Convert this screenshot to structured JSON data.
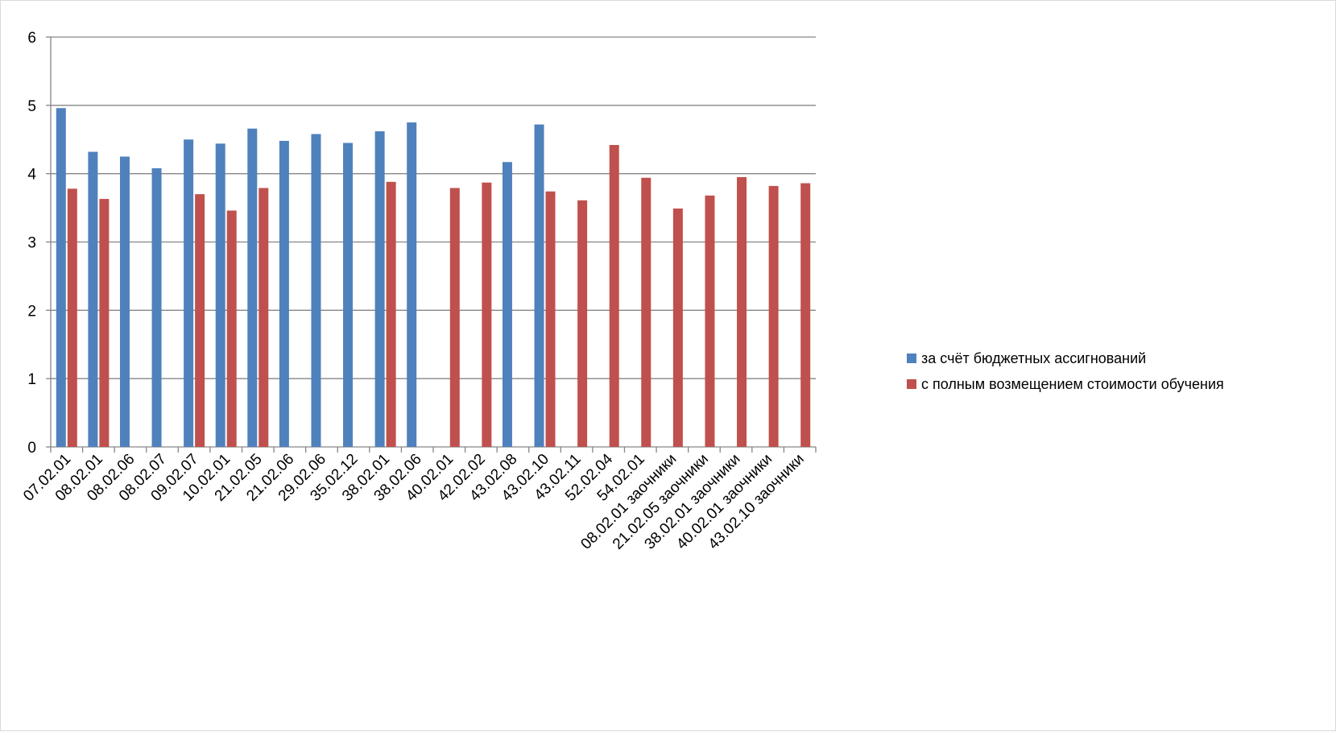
{
  "chart_data": {
    "type": "bar",
    "title": "",
    "xlabel": "",
    "ylabel": "",
    "ylim": [
      0,
      6
    ],
    "yticks": [
      "0",
      "1",
      "2",
      "3",
      "4",
      "5",
      "6"
    ],
    "grid": "horizontal",
    "legend_position": "right",
    "categories": [
      "07.02.01",
      "08.02.01",
      "08.02.06",
      "08.02.07",
      "09.02.07",
      "10.02.01",
      "21.02.05",
      "21.02.06",
      "29.02.06",
      "35.02.12",
      "38.02.01",
      "38.02.06",
      "40.02.01",
      "42.02.02",
      "43.02.08",
      "43.02.10",
      "43.02.11",
      "52.02.04",
      "54.02.01",
      "08.02.01 заочники",
      "21.02.05 заочники",
      "38.02.01 заочники",
      "40.02.01 заочники",
      "43.02.10 заочники"
    ],
    "series": [
      {
        "name": "за счёт бюджетных ассигнований",
        "color": "#4f81bd",
        "values": [
          4.96,
          4.32,
          4.25,
          4.08,
          4.5,
          4.44,
          4.66,
          4.48,
          4.58,
          4.45,
          4.62,
          4.75,
          0,
          0,
          4.17,
          4.72,
          0,
          0,
          0,
          0,
          0,
          0,
          0,
          0
        ]
      },
      {
        "name": "с полным возмещением стоимости обучения",
        "color": "#c0504d",
        "values": [
          3.78,
          3.63,
          0,
          0,
          3.7,
          3.46,
          3.79,
          0,
          0,
          0,
          3.88,
          0,
          3.79,
          3.87,
          0,
          3.74,
          3.61,
          4.42,
          3.94,
          3.49,
          3.68,
          3.95,
          3.82,
          3.86
        ]
      }
    ]
  }
}
